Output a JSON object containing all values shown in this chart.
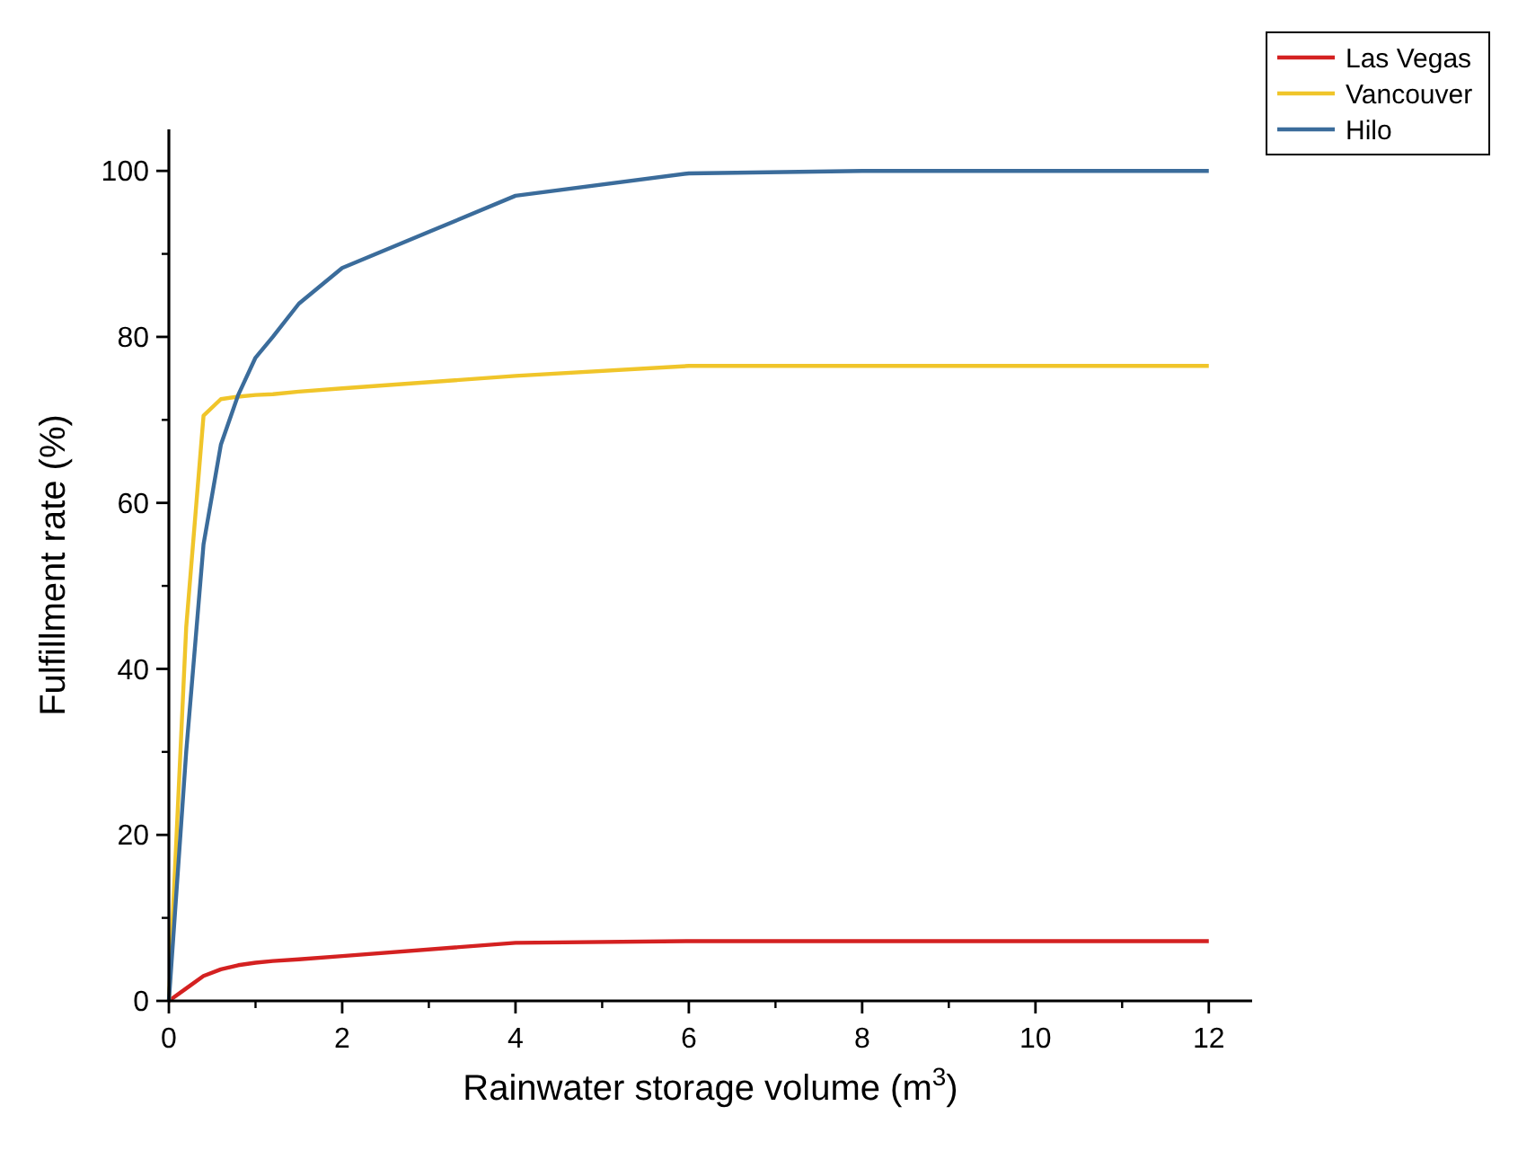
{
  "chart_data": {
    "type": "line",
    "xlabel": "Rainwater storage volume (m$^{3}$)",
    "ylabel": "Fulfillment rate (%)",
    "xlim": [
      0,
      12.5
    ],
    "ylim": [
      0,
      105
    ],
    "xticks": [
      0,
      2,
      4,
      6,
      8,
      10,
      12
    ],
    "yticks": [
      0,
      20,
      40,
      60,
      80,
      100
    ],
    "legend": "top right",
    "marker": "none",
    "line_style": "solid",
    "x": [
      0,
      0.2,
      0.4,
      0.6,
      0.8,
      1,
      1.2,
      1.5,
      2,
      4,
      6,
      8,
      10,
      12
    ],
    "series": [
      {
        "name": "Las Vegas",
        "color": "#d42121",
        "values": [
          0,
          1.5,
          3,
          3.8,
          4.3,
          4.6,
          4.8,
          5,
          5.4,
          7,
          7.2,
          7.2,
          7.2,
          7.2
        ]
      },
      {
        "name": "Vancouver",
        "color": "#f0c52a",
        "values": [
          0,
          45,
          70.5,
          72.5,
          72.8,
          73,
          73.1,
          73.4,
          73.8,
          75.3,
          76.5,
          76.5,
          76.5,
          76.5
        ]
      },
      {
        "name": "Hilo",
        "color": "#3b6c9b",
        "values": [
          0,
          30,
          55,
          67,
          73,
          77.5,
          80,
          84,
          88.3,
          97,
          99.7,
          100,
          100,
          100
        ]
      }
    ]
  }
}
